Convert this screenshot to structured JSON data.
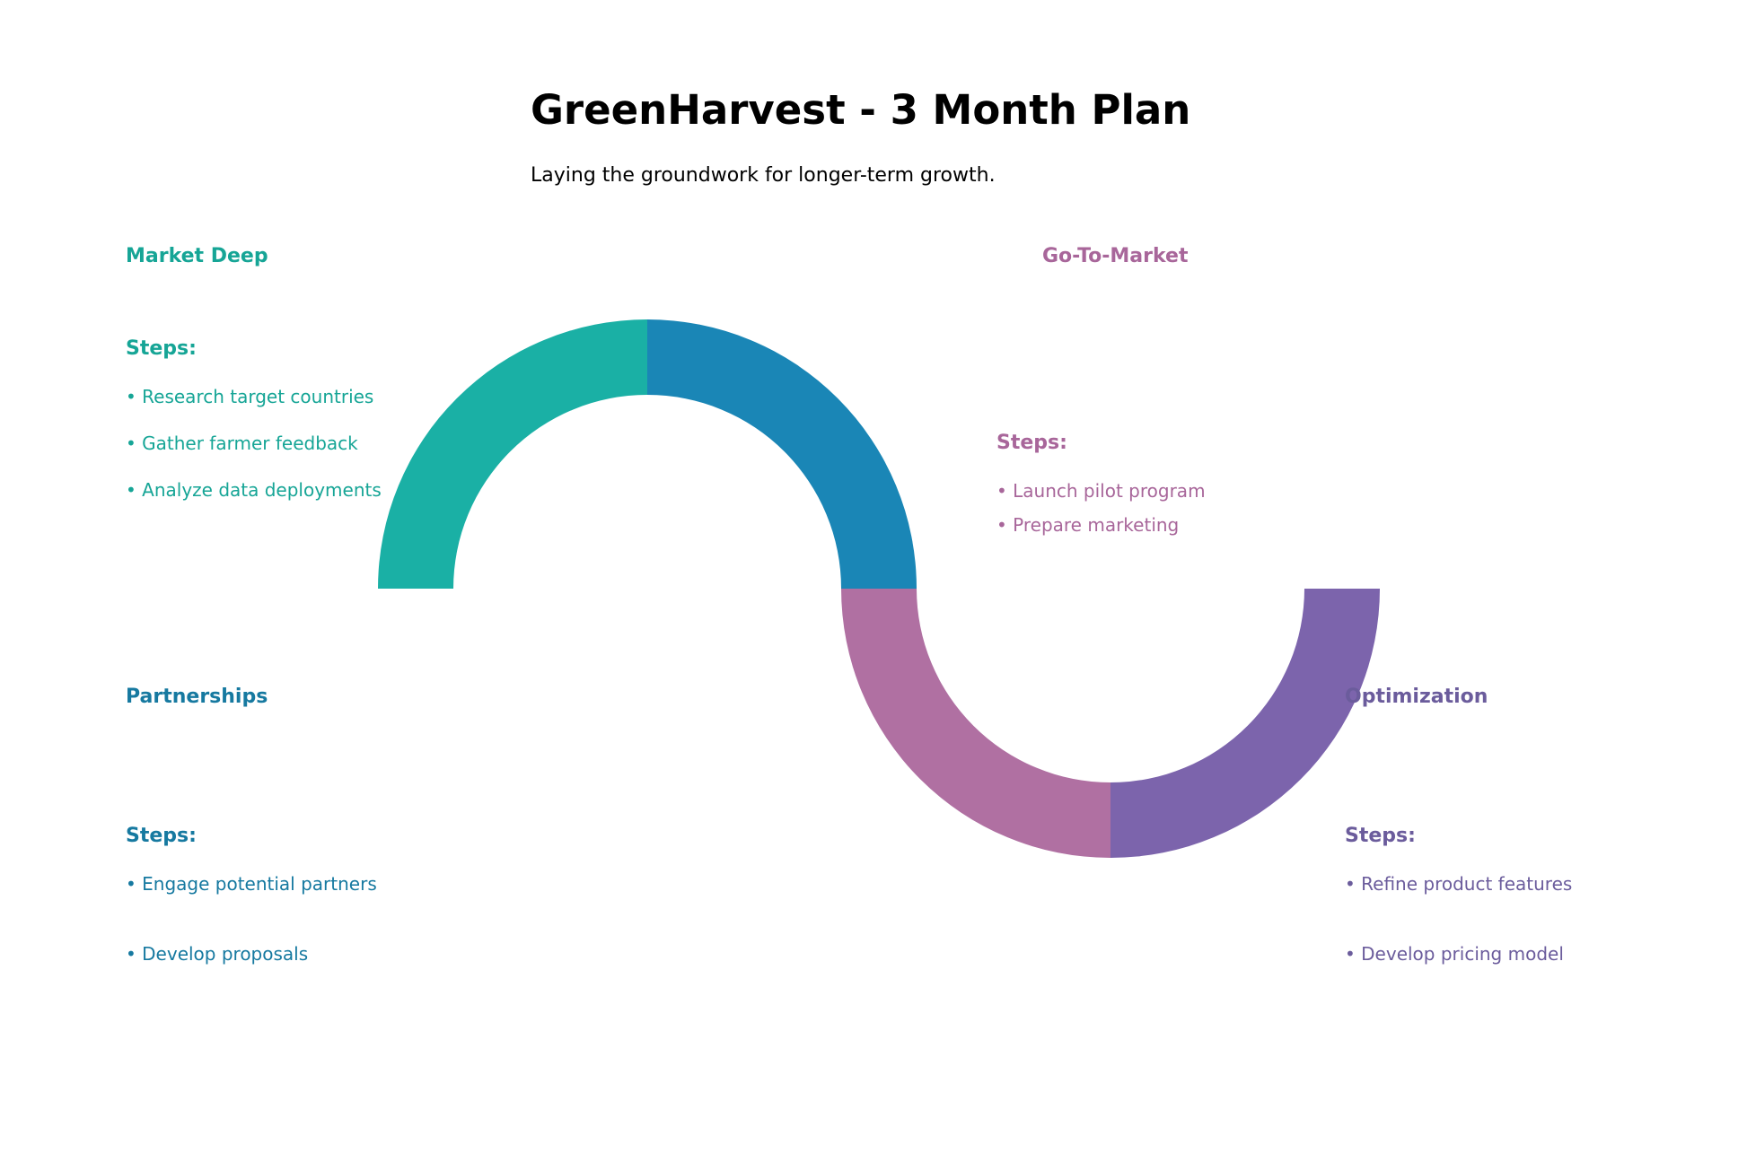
{
  "header": {
    "title": "GreenHarvest - 3 Month Plan",
    "subtitle": "Laying the groundwork for longer-term growth."
  },
  "phases": [
    {
      "name": "Market Deep",
      "color": "#1AB0A5",
      "text_color": "#16A596",
      "steps_label": "Steps:",
      "steps": [
        "• Research target countries",
        "• Gather farmer feedback",
        "• Analyze data deployments"
      ]
    },
    {
      "name": "Partnerships",
      "color": "#1A86B6",
      "text_color": "#1679A0",
      "steps_label": "Steps:",
      "steps": [
        "• Engage potential partners",
        "• Develop proposals"
      ]
    },
    {
      "name": "Go-To-Market",
      "color": "#B070A2",
      "text_color": "#A8669A",
      "steps_label": "Steps:",
      "steps": [
        "• Launch pilot program",
        "• Prepare marketing"
      ]
    },
    {
      "name": "Optimization",
      "color": "#7C64AC",
      "text_color": "#6B5C9C",
      "steps_label": "Steps:",
      "steps": [
        "• Refine product features",
        "• Develop pricing model"
      ]
    }
  ]
}
